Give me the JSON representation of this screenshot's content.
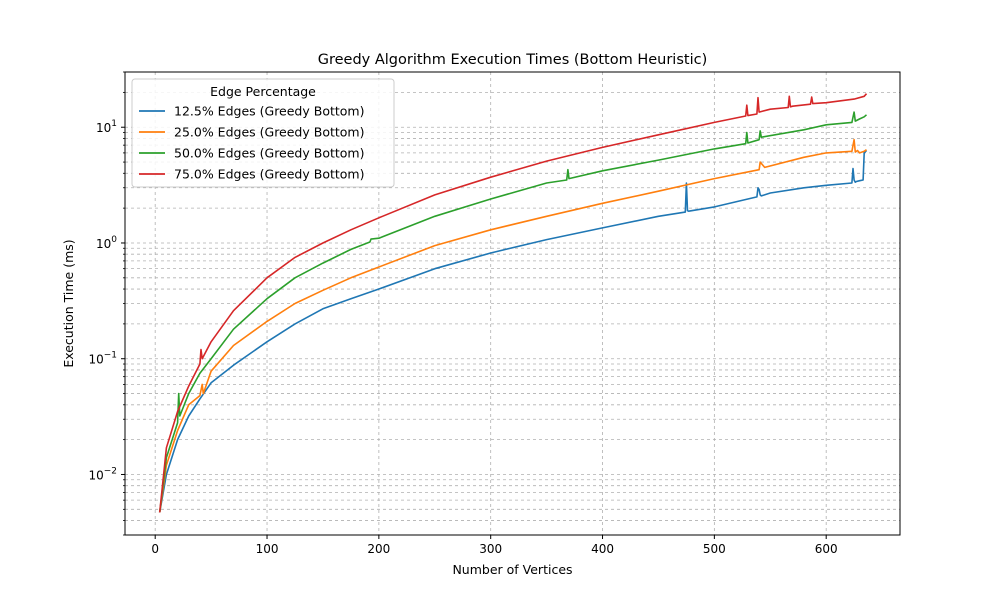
{
  "chart_data": {
    "type": "line",
    "title": "Greedy Algorithm Execution Times (Bottom Heuristic)",
    "xlabel": "Number of Vertices",
    "ylabel": "Execution Time (ms)",
    "xlim": [
      -27,
      666
    ],
    "ylim": [
      0.003,
      30
    ],
    "yscale": "log",
    "x_ticks": [
      0,
      100,
      200,
      300,
      400,
      500,
      600
    ],
    "x_tick_labels": [
      "0",
      "100",
      "200",
      "300",
      "400",
      "500",
      "600"
    ],
    "y_major_ticks": [
      0.01,
      0.1,
      1,
      10
    ],
    "y_tick_labels": [
      {
        "base": "10",
        "exp": "−2"
      },
      {
        "base": "10",
        "exp": "−1"
      },
      {
        "base": "10",
        "exp": "0"
      },
      {
        "base": "10",
        "exp": "1"
      }
    ],
    "grid": true,
    "legend": {
      "title": "Edge Percentage",
      "position": "top-left"
    },
    "series": [
      {
        "name": "12.5% Edges (Greedy Bottom)",
        "color": "#1f77b4",
        "x": [
          4,
          10,
          20,
          30,
          40,
          50,
          70,
          100,
          125,
          150,
          175,
          200,
          250,
          300,
          350,
          400,
          450,
          474,
          475,
          476,
          477,
          500,
          538,
          539,
          540,
          541,
          542,
          550,
          580,
          600,
          623,
          624,
          625,
          626,
          627,
          630,
          633,
          634,
          636
        ],
        "y": [
          0.0047,
          0.01,
          0.02,
          0.032,
          0.045,
          0.062,
          0.088,
          0.14,
          0.2,
          0.27,
          0.33,
          0.4,
          0.6,
          0.82,
          1.07,
          1.35,
          1.7,
          1.85,
          3.3,
          1.9,
          1.88,
          2.05,
          2.5,
          3.0,
          2.9,
          2.6,
          2.55,
          2.7,
          3.0,
          3.15,
          3.3,
          4.4,
          3.5,
          3.35,
          3.4,
          3.45,
          3.5,
          6.0,
          6.3
        ]
      },
      {
        "name": "25.0% Edges (Greedy Bottom)",
        "color": "#ff7f0e",
        "x": [
          4,
          10,
          20,
          30,
          40,
          42,
          43,
          50,
          70,
          100,
          125,
          150,
          175,
          200,
          250,
          300,
          350,
          400,
          450,
          500,
          540,
          541,
          545,
          580,
          600,
          623,
          625,
          626,
          628,
          630,
          634,
          636
        ],
        "y": [
          0.0047,
          0.012,
          0.024,
          0.04,
          0.048,
          0.06,
          0.05,
          0.078,
          0.13,
          0.21,
          0.3,
          0.39,
          0.5,
          0.62,
          0.95,
          1.3,
          1.7,
          2.2,
          2.8,
          3.6,
          4.3,
          5.0,
          4.5,
          5.5,
          6.0,
          6.2,
          7.8,
          6.1,
          6.3,
          6.0,
          6.2,
          6.4
        ]
      },
      {
        "name": "50.0% Edges (Greedy Bottom)",
        "color": "#2ca02c",
        "x": [
          4,
          10,
          20,
          21,
          22,
          30,
          40,
          50,
          70,
          100,
          125,
          150,
          175,
          192,
          193,
          200,
          250,
          300,
          350,
          368,
          369,
          370,
          400,
          450,
          500,
          528,
          529,
          530,
          540,
          541,
          542,
          580,
          600,
          623,
          625,
          626,
          630,
          634,
          636
        ],
        "y": [
          0.0047,
          0.014,
          0.028,
          0.05,
          0.032,
          0.05,
          0.075,
          0.1,
          0.18,
          0.33,
          0.5,
          0.67,
          0.88,
          1.02,
          1.08,
          1.1,
          1.7,
          2.4,
          3.3,
          3.5,
          4.3,
          3.6,
          4.2,
          5.2,
          6.5,
          7.2,
          9.0,
          7.3,
          7.8,
          9.3,
          8.2,
          9.5,
          10.5,
          11.0,
          13.5,
          11.3,
          11.8,
          12.3,
          12.8
        ]
      },
      {
        "name": "75.0% Edges (Greedy Bottom)",
        "color": "#d62728",
        "x": [
          4,
          10,
          20,
          30,
          40,
          41,
          42,
          50,
          70,
          100,
          125,
          150,
          175,
          200,
          250,
          300,
          350,
          400,
          450,
          500,
          528,
          529,
          530,
          538,
          539,
          540,
          550,
          566,
          567,
          568,
          570,
          586,
          587,
          588,
          600,
          625,
          634,
          636
        ],
        "y": [
          0.0047,
          0.017,
          0.035,
          0.058,
          0.09,
          0.12,
          0.1,
          0.14,
          0.26,
          0.5,
          0.75,
          1.0,
          1.3,
          1.65,
          2.6,
          3.7,
          5.1,
          6.7,
          8.6,
          11.0,
          12.5,
          15.5,
          12.6,
          13.0,
          18.0,
          13.5,
          14.3,
          14.8,
          18.5,
          15.0,
          15.2,
          15.8,
          18.2,
          16.0,
          16.3,
          17.5,
          18.5,
          19.5
        ]
      }
    ]
  }
}
